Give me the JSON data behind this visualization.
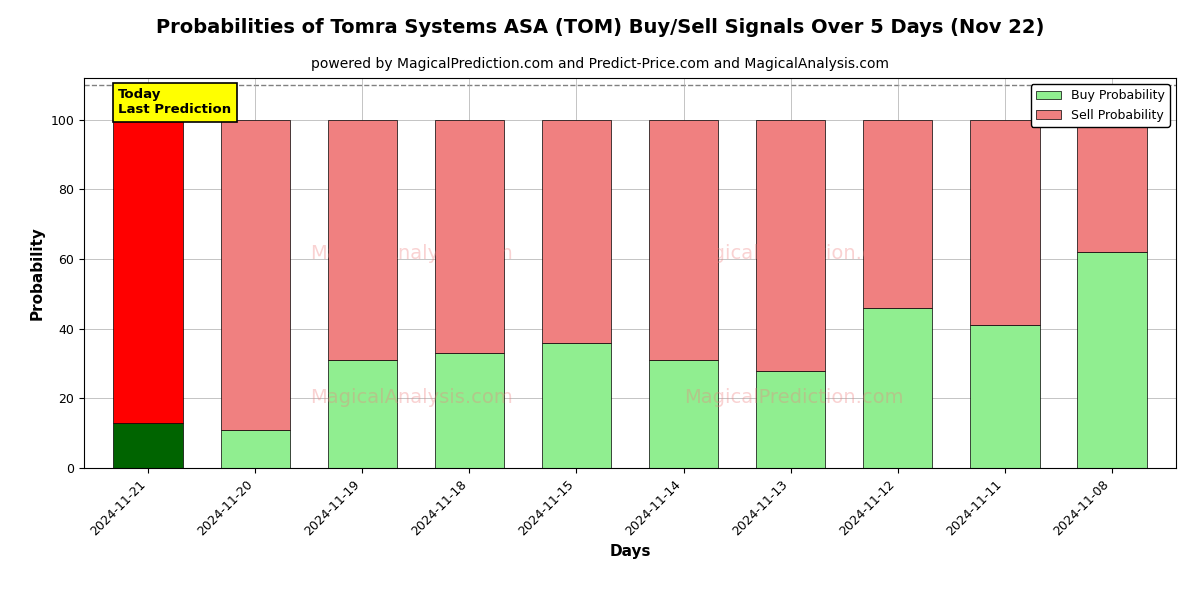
{
  "title": "Probabilities of Tomra Systems ASA (TOM) Buy/Sell Signals Over 5 Days (Nov 22)",
  "subtitle": "powered by MagicalPrediction.com and Predict-Price.com and MagicalAnalysis.com",
  "xlabel": "Days",
  "ylabel": "Probability",
  "categories": [
    "2024-11-21",
    "2024-11-20",
    "2024-11-19",
    "2024-11-18",
    "2024-11-15",
    "2024-11-14",
    "2024-11-13",
    "2024-11-12",
    "2024-11-11",
    "2024-11-08"
  ],
  "buy_values": [
    13,
    11,
    31,
    33,
    36,
    31,
    28,
    46,
    41,
    62
  ],
  "sell_values": [
    87,
    89,
    69,
    67,
    64,
    69,
    72,
    54,
    59,
    38
  ],
  "today_index": 0,
  "today_buy_color": "#006400",
  "today_sell_color": "#ff0000",
  "other_buy_color": "#90EE90",
  "other_sell_color": "#F08080",
  "today_label_bg": "#ffff00",
  "today_label_text": "Today\nLast Prediction",
  "legend_buy_label": "Buy Probability",
  "legend_sell_label": "Sell Probability",
  "ylim": [
    0,
    112
  ],
  "dashed_line_y": 110,
  "background_color": "#ffffff",
  "grid_color": "#aaaaaa",
  "title_fontsize": 14,
  "subtitle_fontsize": 10,
  "axis_label_fontsize": 11,
  "tick_fontsize": 9,
  "bar_width": 0.65
}
